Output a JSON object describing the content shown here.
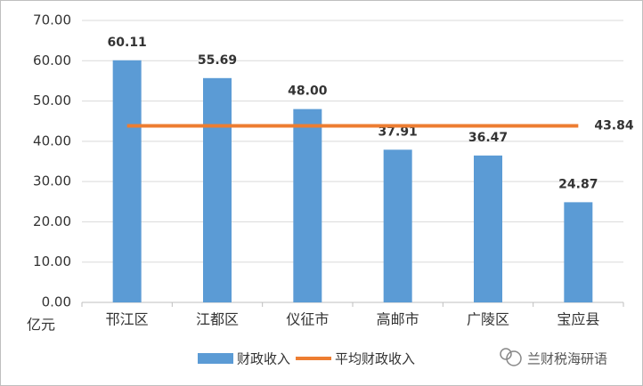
{
  "chart_data": {
    "type": "bar-line",
    "y_unit_label": "亿元",
    "watermark": "兰财税海研语",
    "categories": [
      "邗江区",
      "江都区",
      "仪征市",
      "高邮市",
      "广陵区",
      "宝应县"
    ],
    "series": [
      {
        "name": "财政收入",
        "type": "bar",
        "color": "#5b9bd5",
        "values": [
          60.11,
          55.69,
          48,
          37.91,
          36.47,
          24.87
        ],
        "value_labels": [
          "60.11",
          "55.69",
          "48.00",
          "37.91",
          "36.47",
          "24.87"
        ]
      },
      {
        "name": "平均财政收入",
        "type": "line",
        "color": "#ed7d31",
        "values": [
          43.84,
          43.84,
          43.84,
          43.84,
          43.84,
          43.84
        ]
      }
    ],
    "ylim": [
      0,
      70
    ],
    "yticks": [
      {
        "value": 0,
        "label": "0.00"
      },
      {
        "value": 10,
        "label": "10.00"
      },
      {
        "value": 20,
        "label": "20.00"
      },
      {
        "value": 30,
        "label": "30.00"
      },
      {
        "value": 40,
        "label": "40.00"
      },
      {
        "value": 50,
        "label": "50.00"
      },
      {
        "value": 60,
        "label": "60.00"
      },
      {
        "value": 70,
        "label": "70.00"
      }
    ],
    "grid": true
  }
}
